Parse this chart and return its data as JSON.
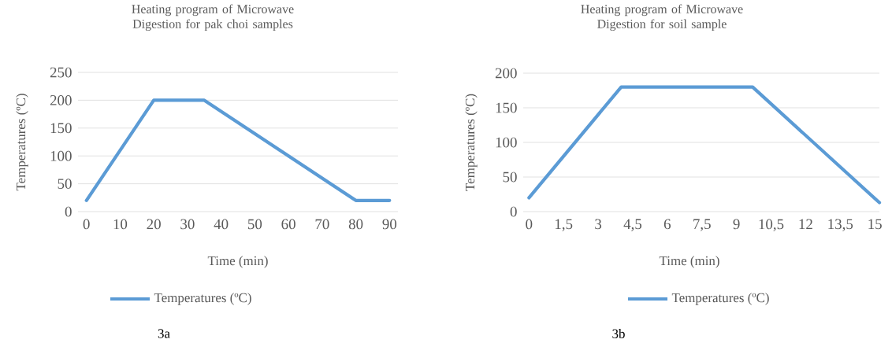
{
  "chart_data": [
    {
      "type": "line",
      "title": "Heating program of Microwave Digestion for pak choi samples",
      "xlabel": "Time (min)",
      "ylabel": "Temperatures (ºC)",
      "xlim": [
        -2.5,
        92.5
      ],
      "ylim": [
        0,
        250
      ],
      "xticks": [
        0,
        10,
        20,
        30,
        40,
        50,
        60,
        70,
        80,
        90
      ],
      "yticks": [
        0,
        50,
        100,
        150,
        200,
        250
      ],
      "grid": "y",
      "legend": "bottom",
      "marker": "none",
      "line_style": "solid",
      "series": [
        {
          "name": "Temperatures (ºC)",
          "color": "#5b9bd5",
          "x": [
            0,
            20,
            35,
            80,
            90
          ],
          "values": [
            20,
            200,
            200,
            20,
            20
          ]
        }
      ],
      "annotations": [
        "3a"
      ]
    },
    {
      "type": "line",
      "title": "Heating program of Microwave Digestion for soil sample",
      "xlabel": "Time (min)",
      "ylabel": "Temperatures (ºC)",
      "xlim": [
        -0.25,
        15.2
      ],
      "ylim": [
        0,
        200
      ],
      "xticks": [
        0,
        {
          "value": 1.5,
          "label": "1,5"
        },
        3,
        {
          "value": 4.5,
          "label": "4,5"
        },
        6,
        {
          "value": 7.5,
          "label": "7,5"
        },
        9,
        {
          "value": 10.5,
          "label": "10,5"
        },
        12,
        {
          "value": 13.5,
          "label": "13,5"
        },
        15
      ],
      "yticks": [
        0,
        50,
        100,
        150,
        200
      ],
      "grid": "y",
      "legend": "bottom",
      "marker": "none",
      "line_style": "solid",
      "series": [
        {
          "name": "Temperatures (ºC)",
          "color": "#5b9bd5",
          "x": [
            0,
            4,
            9.7,
            15.2
          ],
          "values": [
            20,
            180,
            180,
            13
          ]
        }
      ],
      "annotations": [
        "3b"
      ]
    }
  ]
}
